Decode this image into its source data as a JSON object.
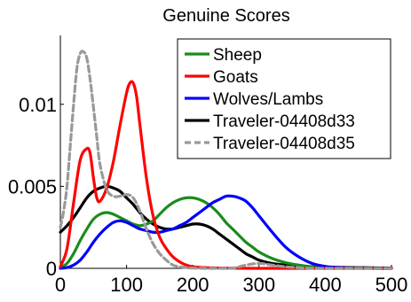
{
  "chart_data": {
    "type": "line",
    "title": "Genuine Scores",
    "xlabel": "",
    "ylabel": "",
    "xlim": [
      0,
      500
    ],
    "ylim": [
      0,
      0.0142
    ],
    "x_ticks": [
      "0",
      "100",
      "200",
      "300",
      "400",
      "500"
    ],
    "x_tick_values": [
      0,
      100,
      200,
      300,
      400,
      500
    ],
    "y_ticks": [
      "0",
      "0.005",
      "0.01"
    ],
    "y_tick_values": [
      0,
      0.005,
      0.01
    ],
    "grid": false,
    "legend_position": "top-right",
    "series": [
      {
        "name": "Sheep",
        "color": "#1a8c1a",
        "style": "solid",
        "x": [
          0,
          10,
          20,
          30,
          40,
          50,
          60,
          70,
          80,
          90,
          100,
          110,
          120,
          130,
          140,
          150,
          160,
          170,
          180,
          190,
          200,
          210,
          220,
          230,
          240,
          250,
          260,
          270,
          280,
          290,
          300,
          320,
          340,
          360,
          380,
          400,
          420,
          440,
          460,
          480,
          500
        ],
        "y": [
          5e-05,
          0.0003,
          0.0009,
          0.0017,
          0.0024,
          0.003,
          0.0033,
          0.0034,
          0.0033,
          0.0031,
          0.0029,
          0.0027,
          0.0026,
          0.0027,
          0.0029,
          0.0033,
          0.0037,
          0.004,
          0.0042,
          0.0043,
          0.0043,
          0.0042,
          0.004,
          0.0037,
          0.0033,
          0.0028,
          0.0024,
          0.002,
          0.0016,
          0.0013,
          0.001,
          0.0006,
          0.00035,
          0.0002,
          0.0001,
          5e-05,
          2e-05,
          1e-05,
          5e-06,
          0,
          0
        ]
      },
      {
        "name": "Goats",
        "color": "#ff0000",
        "style": "solid",
        "x": [
          0,
          10,
          20,
          30,
          40,
          45,
          50,
          55,
          60,
          70,
          80,
          90,
          100,
          105,
          110,
          115,
          120,
          130,
          140,
          150,
          160,
          170,
          180,
          190,
          200,
          220,
          240,
          260,
          300,
          400,
          500
        ],
        "y": [
          0.0001,
          0.0012,
          0.004,
          0.0066,
          0.0073,
          0.007,
          0.0055,
          0.0043,
          0.0041,
          0.0049,
          0.0065,
          0.0087,
          0.0107,
          0.0113,
          0.0113,
          0.0105,
          0.0088,
          0.0055,
          0.0032,
          0.0019,
          0.0012,
          0.0007,
          0.0004,
          0.0002,
          0.0001,
          4e-05,
          2e-05,
          1e-05,
          0,
          0,
          0
        ]
      },
      {
        "name": "Wolves/Lambs",
        "color": "#0000ff",
        "style": "solid",
        "x": [
          0,
          10,
          20,
          30,
          40,
          50,
          60,
          70,
          80,
          90,
          100,
          110,
          120,
          130,
          140,
          150,
          160,
          170,
          180,
          190,
          200,
          210,
          220,
          230,
          240,
          250,
          260,
          270,
          280,
          290,
          300,
          320,
          340,
          360,
          380,
          400,
          420,
          440,
          460,
          480,
          500
        ],
        "y": [
          0,
          5e-05,
          0.0002,
          0.0005,
          0.001,
          0.0016,
          0.0021,
          0.0025,
          0.0028,
          0.0029,
          0.0028,
          0.0026,
          0.0024,
          0.0023,
          0.0022,
          0.0022,
          0.0023,
          0.0024,
          0.0026,
          0.0028,
          0.0031,
          0.0034,
          0.0037,
          0.004,
          0.0042,
          0.0044,
          0.0044,
          0.0043,
          0.0041,
          0.0037,
          0.0032,
          0.0022,
          0.0013,
          0.0007,
          0.0003,
          0.00012,
          5e-05,
          2e-05,
          1e-05,
          0,
          0
        ]
      },
      {
        "name": "Traveler-04408d33",
        "color": "#000000",
        "style": "solid",
        "x": [
          0,
          10,
          20,
          30,
          40,
          50,
          60,
          70,
          80,
          90,
          100,
          110,
          120,
          130,
          140,
          150,
          160,
          170,
          180,
          190,
          200,
          210,
          220,
          230,
          240,
          250,
          260,
          270,
          280,
          290,
          300,
          320,
          340,
          360,
          380,
          400,
          420,
          440,
          460,
          480,
          500
        ],
        "y": [
          0.0022,
          0.0026,
          0.0031,
          0.0037,
          0.0043,
          0.0047,
          0.0049,
          0.005,
          0.0049,
          0.0047,
          0.0043,
          0.0039,
          0.0034,
          0.003,
          0.0027,
          0.0025,
          0.0024,
          0.0024,
          0.0025,
          0.0026,
          0.0027,
          0.0027,
          0.0026,
          0.0024,
          0.0021,
          0.0018,
          0.0015,
          0.0012,
          0.0009,
          0.0007,
          0.0005,
          0.0003,
          0.0002,
          0.00015,
          0.0001,
          8e-05,
          6e-05,
          5e-05,
          4e-05,
          3e-05,
          2e-05
        ]
      },
      {
        "name": "Traveler-04408d35",
        "color": "#999999",
        "style": "dashed",
        "x": [
          0,
          5,
          10,
          15,
          20,
          25,
          30,
          35,
          40,
          45,
          50,
          55,
          60,
          70,
          80,
          90,
          100,
          110,
          120,
          130,
          140,
          150,
          160,
          170,
          180,
          190,
          200,
          220,
          240,
          260,
          280,
          300,
          320,
          340,
          380,
          420,
          460,
          500
        ],
        "y": [
          0.0025,
          0.0035,
          0.005,
          0.0075,
          0.01,
          0.0122,
          0.0131,
          0.0132,
          0.0128,
          0.0115,
          0.0098,
          0.008,
          0.0063,
          0.0048,
          0.0044,
          0.0044,
          0.0045,
          0.0043,
          0.0035,
          0.0024,
          0.0015,
          0.0009,
          0.0005,
          0.0002,
          0.0001,
          5e-05,
          2e-05,
          0.0,
          0.0,
          0.0,
          0.0002,
          0.0003,
          0.0002,
          0.0001,
          0.0,
          0.0,
          0.0,
          0.0
        ]
      }
    ]
  }
}
